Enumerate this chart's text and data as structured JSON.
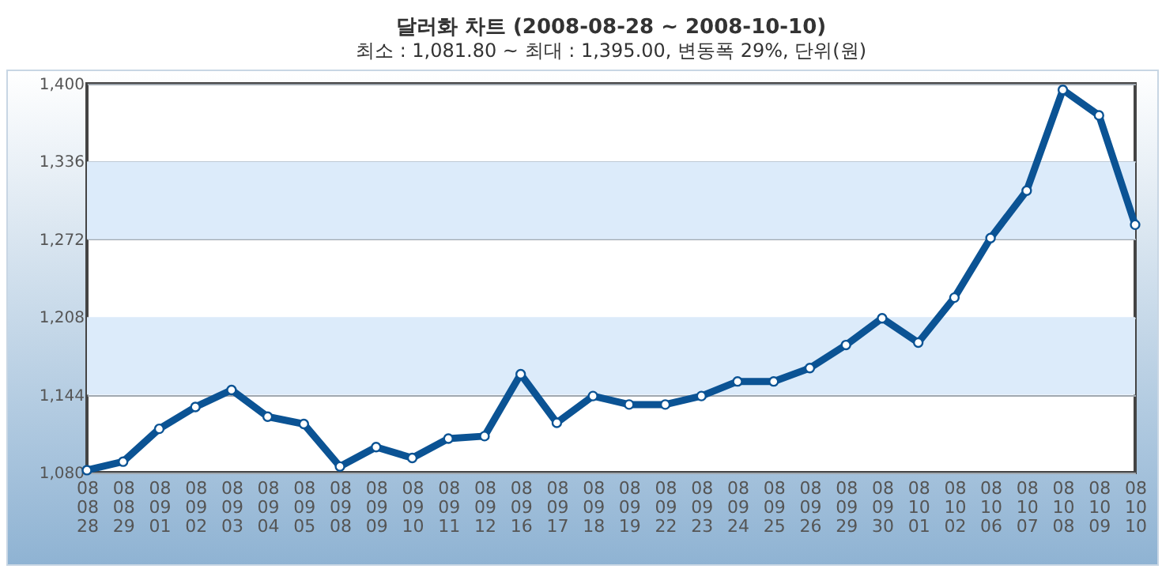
{
  "chart_data": {
    "type": "line",
    "title": "달러화 차트 (2008-08-28 ~ 2008-10-10)",
    "subtitle": "최소 : 1,081.80 ~ 최대 : 1,395.00, 변동폭 29%, 단위(원)",
    "categories": [
      "08\n08\n28",
      "08\n08\n29",
      "08\n09\n01",
      "08\n09\n02",
      "08\n09\n03",
      "08\n09\n04",
      "08\n09\n05",
      "08\n09\n08",
      "08\n09\n09",
      "08\n09\n10",
      "08\n09\n11",
      "08\n09\n12",
      "08\n09\n16",
      "08\n09\n17",
      "08\n09\n18",
      "08\n09\n19",
      "08\n09\n22",
      "08\n09\n23",
      "08\n09\n24",
      "08\n09\n25",
      "08\n09\n26",
      "08\n09\n29",
      "08\n09\n30",
      "08\n10\n01",
      "08\n10\n02",
      "08\n10\n06",
      "08\n10\n07",
      "08\n10\n08",
      "08\n10\n09",
      "08\n10\n10"
    ],
    "series": [
      {
        "color": "#0b5394",
        "values": [
          1082,
          1089,
          1116,
          1134,
          1148,
          1126,
          1120,
          1085,
          1101,
          1092,
          1108,
          1110,
          1161,
          1121,
          1143,
          1136,
          1136,
          1143,
          1155,
          1155,
          1166,
          1185,
          1207,
          1187,
          1224,
          1273,
          1312,
          1395,
          1374,
          1284
        ]
      }
    ],
    "ylim": [
      1080,
      1400
    ],
    "yticks": [
      {
        "value": 1080,
        "label": "1,080"
      },
      {
        "value": 1144,
        "label": "1,144"
      },
      {
        "value": 1208,
        "label": "1,208"
      },
      {
        "value": 1272,
        "label": "1,272"
      },
      {
        "value": 1336,
        "label": "1,336"
      },
      {
        "value": 1400,
        "label": "1,400"
      }
    ],
    "grid": "y",
    "marker": "circle",
    "line_style": "solid",
    "bands": [
      {
        "axis": "y",
        "from": 1144,
        "to": 1208,
        "color": "#dcebfa"
      },
      {
        "axis": "y",
        "from": 1272,
        "to": 1336,
        "color": "#dcebfa"
      }
    ]
  }
}
